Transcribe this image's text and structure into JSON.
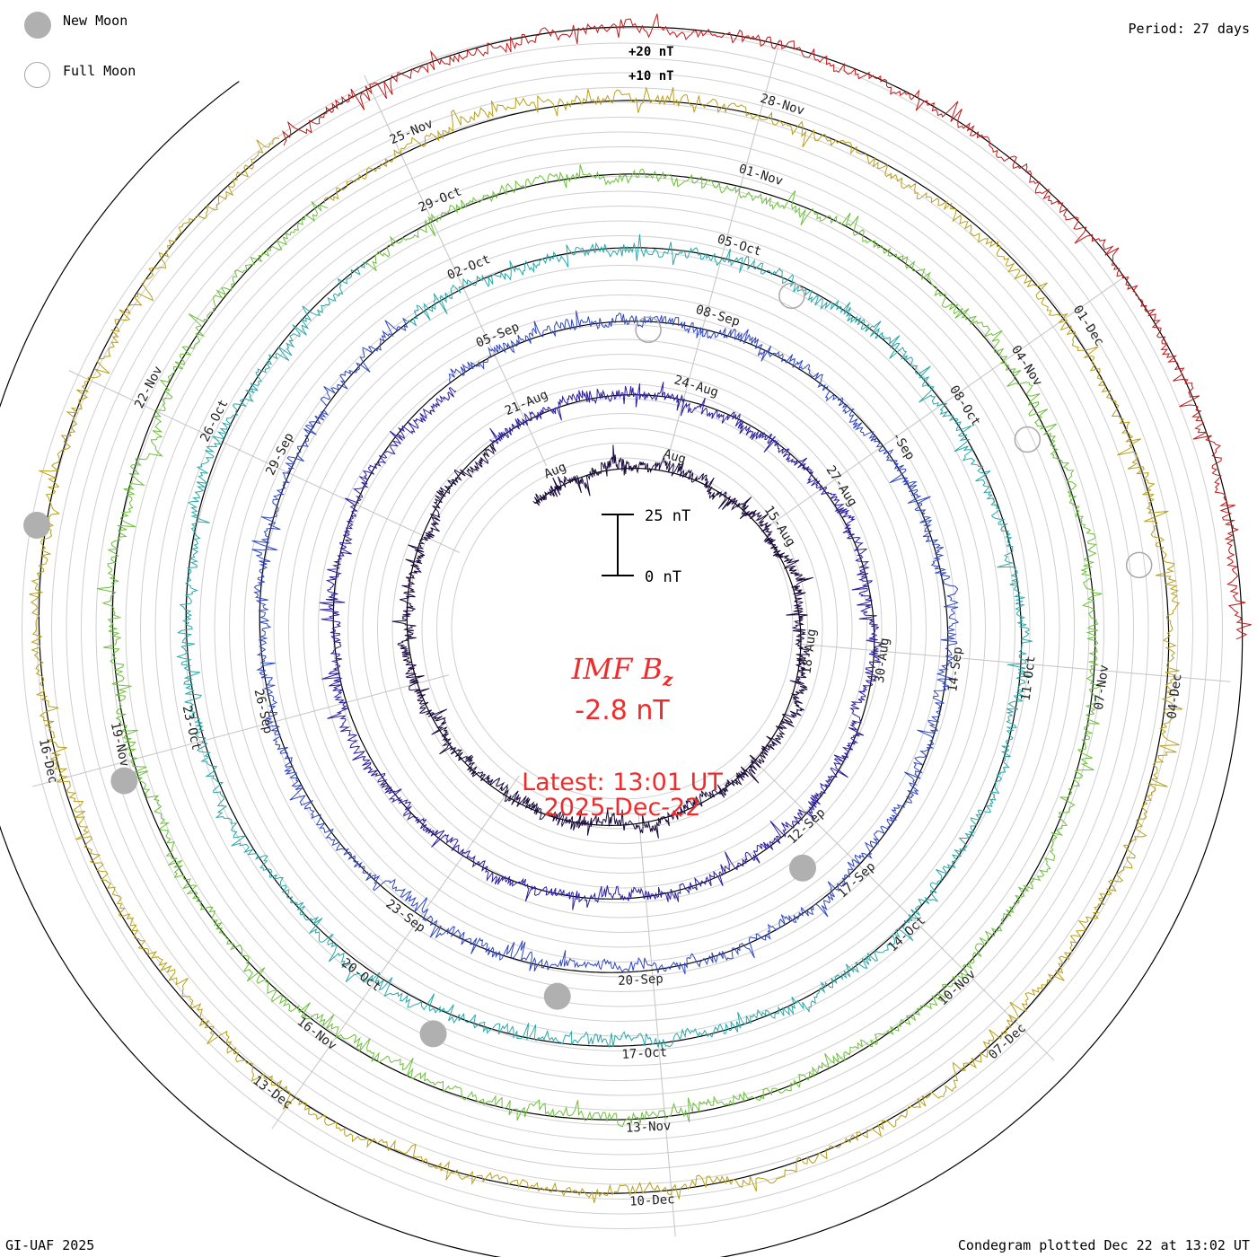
{
  "legend": {
    "new_moon_label": "New Moon",
    "full_moon_label": "Full Moon",
    "new_moon_color": "#b0b0b0",
    "full_moon_color": "#a8a8a8"
  },
  "period_label": "Period: 27 days",
  "credit": "GI-UAF 2025",
  "plotted_label": "Condegram plotted Dec 22 at 13:02 UT",
  "center": {
    "title_main": "IMF B",
    "title_sub": "z",
    "current_value": "-2.8 nT",
    "latest_time": "Latest: 13:01 UT",
    "latest_date": "2025-Dec-22",
    "text_color": "#ee2c2c"
  },
  "chart_data": {
    "type": "line",
    "title": "IMF Bz",
    "quantity": "IMF Bz",
    "units": "nT",
    "period_days": 27,
    "latest_value": -2.8,
    "scale_bar": {
      "top_label": "25 nT",
      "bottom_label": "0 nT",
      "span": 25
    },
    "ring_labels": [
      "+20 nT",
      "+10 nT"
    ],
    "ring_values": [
      20,
      10
    ],
    "series": [
      {
        "name": "",
        "color": "#1a0a3c",
        "tick_labels": [
          "Aug",
          "Aug",
          "15-Aug",
          "18-Aug"
        ]
      },
      {
        "name": "",
        "color": "#2a1e9e",
        "tick_labels": [
          "21-Aug",
          "24-Aug",
          "27-Aug",
          "30-Aug",
          "12-Sep"
        ]
      },
      {
        "name": "",
        "color": "#3048c0",
        "tick_labels": [
          "05-Sep",
          "08-Sep",
          "-Sep",
          "14-Sep",
          "17-Sep",
          "20-Sep",
          "23-Sep",
          "26-Sep",
          "29-Sep"
        ]
      },
      {
        "name": "",
        "color": "#2aa8a8",
        "tick_labels": [
          "02-Oct",
          "05-Oct",
          "08-Oct",
          "11-Oct",
          "14-Oct",
          "17-Oct",
          "20-Oct",
          "23-Oct",
          "26-Oct"
        ]
      },
      {
        "name": "",
        "color": "#6cc03a",
        "tick_labels": [
          "29-Oct",
          "01-Nov",
          "04-Nov",
          "07-Nov",
          "10-Nov",
          "13-Nov",
          "16-Nov",
          "19-Nov",
          "22-Nov"
        ]
      },
      {
        "name": "",
        "color": "#b8a01a",
        "tick_labels": [
          "25-Nov",
          "28-Nov",
          "01-Dec",
          "04-Dec",
          "07-Dec",
          "10-Dec",
          "13-Dec",
          "16-Dec"
        ]
      },
      {
        "name": "",
        "color": "#c01818",
        "tick_labels": []
      }
    ],
    "tick_label_angles": [
      0,
      40,
      80,
      120,
      160,
      200,
      240,
      280,
      320
    ],
    "new_moon_markers": [
      {
        "ring": 2,
        "angle": 178
      },
      {
        "ring": 3,
        "angle": 225
      },
      {
        "ring": 4,
        "angle": 240
      },
      {
        "ring": 5,
        "angle": 288
      },
      {
        "ring": 6,
        "angle": 315
      }
    ],
    "full_moon_markers": [
      {
        "ring": 2,
        "angle": 40
      },
      {
        "ring": 3,
        "angle": 62
      },
      {
        "ring": 4,
        "angle": 100
      },
      {
        "ring": 5,
        "angle": 118
      }
    ]
  }
}
